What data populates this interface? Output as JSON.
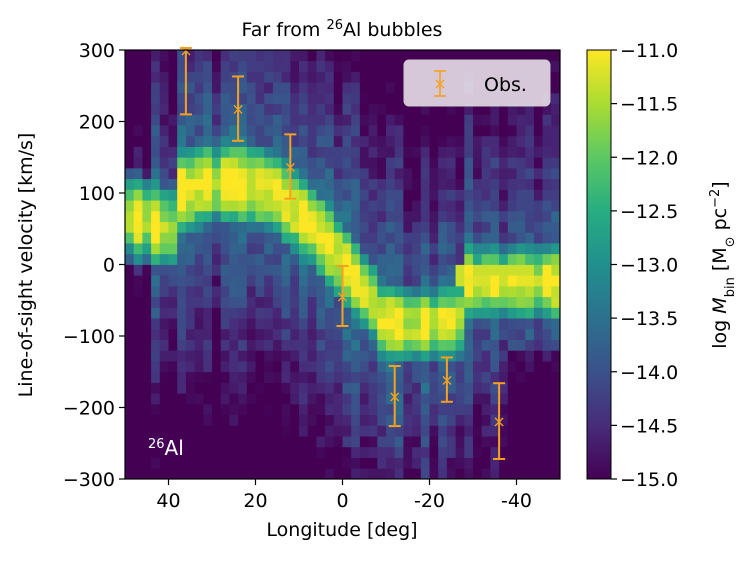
{
  "chart_data": {
    "type": "heatmap",
    "title": "Far from ²⁶Al bubbles",
    "xlabel": "Longitude [deg]",
    "ylabel": "Line-of-sight velocity [km/s]",
    "xlim": [
      50,
      -50
    ],
    "ylim": [
      -300,
      300
    ],
    "x_ticks": [
      40,
      20,
      0,
      -20,
      -40
    ],
    "x_tick_labels": [
      "40",
      "20",
      "0",
      "-20",
      "-40"
    ],
    "y_ticks": [
      -300,
      -200,
      -100,
      0,
      100,
      200,
      300
    ],
    "y_tick_labels": [
      "−300",
      "−200",
      "−100",
      "0",
      "100",
      "200",
      "300"
    ],
    "colorbar": {
      "label": "log M_bin [M_⊙ pc⁻²]",
      "range": [
        -15.0,
        -11.0
      ],
      "ticks": [
        -11.0,
        -11.5,
        -12.0,
        -12.5,
        -13.0,
        -13.5,
        -14.0,
        -14.5,
        -15.0
      ],
      "tick_labels": [
        "−11.0",
        "−11.5",
        "−12.0",
        "−12.5",
        "−13.0",
        "−13.5",
        "−14.0",
        "−14.5",
        "−15.0"
      ],
      "colormap": [
        "#440154",
        "#472c7a",
        "#3b518b",
        "#2c718e",
        "#21908d",
        "#27ad81",
        "#5cc863",
        "#aadc32",
        "#fde725"
      ]
    },
    "annotation": "²⁶Al",
    "legend": {
      "label": "Obs.",
      "location": "top-right",
      "color": "#f5a020"
    },
    "series": [
      {
        "name": "Obs.",
        "x": [
          36,
          24,
          12,
          0,
          -12,
          -24,
          -36
        ],
        "y": [
          300,
          218,
          137,
          -44,
          -184,
          -161,
          -219
        ],
        "yerr": [
          90,
          45,
          45,
          42,
          42,
          31,
          53
        ]
      }
    ]
  }
}
